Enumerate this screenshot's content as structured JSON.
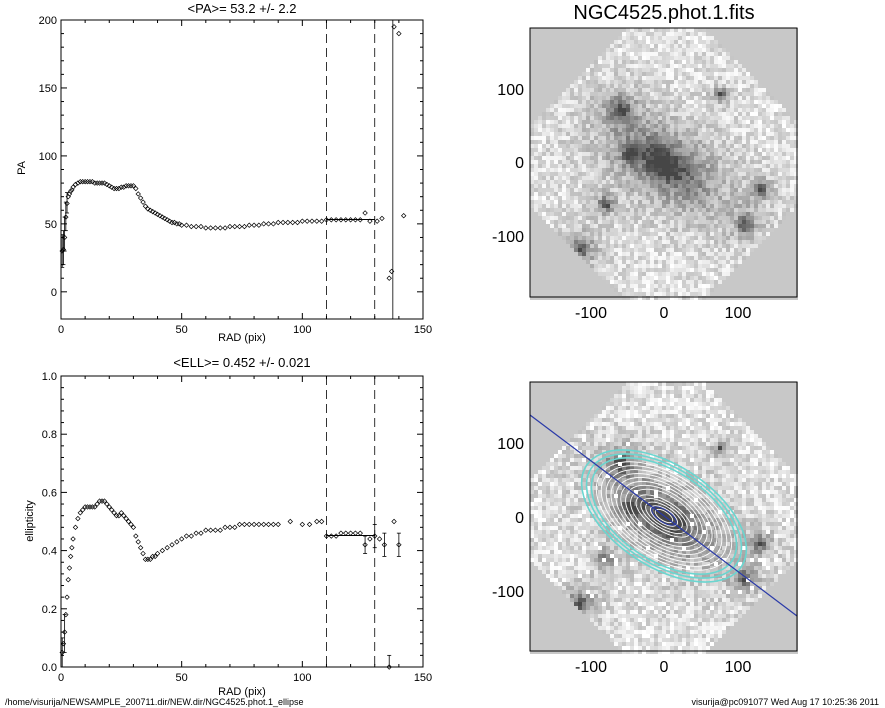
{
  "footer": {
    "path": "/home/visurija/NEWSAMPLE_200711.dir/NEW.dir/NGC4525.phot.1_ellipse",
    "user_date": "visurija@pc091077  Wed Aug 17 10:25:36 2011"
  },
  "colors": {
    "ink": "#000000",
    "contour_outer": "#6ad6d0",
    "contour_inner": "#ffffff",
    "major_axis": "#2a3aa8"
  },
  "images": {
    "top": {
      "title": "NGC4525.phot.1.fits",
      "xticks": [
        "-100",
        "0",
        "100"
      ],
      "yticks": [
        "100",
        "0",
        "-100"
      ]
    },
    "bottom": {
      "title": "",
      "xticks": [
        "-100",
        "0",
        "100"
      ],
      "yticks": [
        "100",
        "0",
        "-100"
      ]
    }
  },
  "chart_data": [
    {
      "type": "scatter",
      "title": "<PA>=  53.2 +/-   2.2",
      "xlabel": "RAD (pix)",
      "ylabel": "PA",
      "xlim": [
        0,
        150
      ],
      "ylim": [
        -20,
        200
      ],
      "xticks": [
        0,
        50,
        100,
        150
      ],
      "yticks": [
        0,
        50,
        100,
        150,
        200
      ],
      "dashed_vlines": [
        110,
        130
      ],
      "mean_segment": {
        "x": [
          110,
          130
        ],
        "y": 53.2
      },
      "points": [
        [
          0.5,
          30
        ],
        [
          1,
          31
        ],
        [
          1.5,
          40
        ],
        [
          2,
          55
        ],
        [
          2.5,
          65
        ],
        [
          3,
          70
        ],
        [
          3.5,
          72
        ],
        [
          4,
          74
        ],
        [
          4.5,
          75
        ],
        [
          5,
          77
        ],
        [
          6,
          79
        ],
        [
          7,
          80
        ],
        [
          8,
          81
        ],
        [
          9,
          81
        ],
        [
          10,
          81
        ],
        [
          11,
          81
        ],
        [
          12,
          81
        ],
        [
          13,
          81
        ],
        [
          14,
          80
        ],
        [
          15,
          80
        ],
        [
          16,
          80
        ],
        [
          17,
          80
        ],
        [
          18,
          80
        ],
        [
          19,
          79
        ],
        [
          20,
          78
        ],
        [
          21,
          77
        ],
        [
          22,
          76
        ],
        [
          23,
          76
        ],
        [
          24,
          76
        ],
        [
          25,
          77
        ],
        [
          26,
          77
        ],
        [
          27,
          78
        ],
        [
          28,
          78
        ],
        [
          29,
          78
        ],
        [
          30,
          78
        ],
        [
          31,
          76
        ],
        [
          32,
          72
        ],
        [
          33,
          69
        ],
        [
          34,
          66
        ],
        [
          35,
          63
        ],
        [
          36,
          61
        ],
        [
          37,
          60
        ],
        [
          38,
          59
        ],
        [
          39,
          58
        ],
        [
          40,
          57
        ],
        [
          41,
          56
        ],
        [
          42,
          55
        ],
        [
          43,
          54
        ],
        [
          44,
          53
        ],
        [
          45,
          52
        ],
        [
          46,
          51
        ],
        [
          47,
          51
        ],
        [
          48,
          50
        ],
        [
          49,
          50
        ],
        [
          50,
          49
        ],
        [
          52,
          49
        ],
        [
          54,
          48
        ],
        [
          56,
          48
        ],
        [
          58,
          48
        ],
        [
          60,
          47
        ],
        [
          62,
          47
        ],
        [
          64,
          47
        ],
        [
          66,
          47
        ],
        [
          68,
          47
        ],
        [
          70,
          48
        ],
        [
          72,
          48
        ],
        [
          74,
          48
        ],
        [
          76,
          48
        ],
        [
          78,
          49
        ],
        [
          80,
          49
        ],
        [
          82,
          49
        ],
        [
          84,
          50
        ],
        [
          86,
          50
        ],
        [
          88,
          50
        ],
        [
          90,
          51
        ],
        [
          92,
          51
        ],
        [
          94,
          51
        ],
        [
          96,
          51
        ],
        [
          98,
          51
        ],
        [
          100,
          52
        ],
        [
          102,
          52
        ],
        [
          104,
          52
        ],
        [
          106,
          52
        ],
        [
          108,
          52
        ],
        [
          110,
          53
        ],
        [
          112,
          53
        ],
        [
          114,
          53
        ],
        [
          116,
          53
        ],
        [
          118,
          53
        ],
        [
          120,
          53
        ],
        [
          122,
          53
        ],
        [
          124,
          53
        ],
        [
          126,
          58
        ],
        [
          128,
          52
        ],
        [
          131,
          52
        ],
        [
          133,
          54
        ],
        [
          136,
          10
        ],
        [
          137,
          15
        ],
        [
          138,
          195
        ],
        [
          140,
          190
        ],
        [
          142,
          56
        ]
      ],
      "errorbars": [
        {
          "x": 0.5,
          "y": 30,
          "lo": 18,
          "hi": 42
        },
        {
          "x": 1,
          "y": 31,
          "lo": 20,
          "hi": 45
        },
        {
          "x": 1.5,
          "y": 40,
          "lo": 30,
          "hi": 55
        },
        {
          "x": 2,
          "y": 55,
          "lo": 45,
          "hi": 66
        },
        {
          "x": 2.5,
          "y": 65,
          "lo": 58,
          "hi": 73
        },
        {
          "x": 137.5,
          "y": 15,
          "lo": -20,
          "hi": 200
        }
      ]
    },
    {
      "type": "scatter",
      "title": "<ELL>= 0.452 +/-  0.021",
      "xlabel": "RAD (pix)",
      "ylabel": "ellipticity",
      "xlim": [
        0,
        150
      ],
      "ylim": [
        0,
        1.0
      ],
      "xticks": [
        0,
        50,
        100,
        150
      ],
      "yticks": [
        "0.0",
        "0.2",
        "0.4",
        "0.6",
        "0.8",
        "1.0"
      ],
      "dashed_vlines": [
        110,
        130
      ],
      "mean_segment": {
        "x": [
          110,
          130
        ],
        "y": 0.452
      },
      "points": [
        [
          0.5,
          0.05
        ],
        [
          1,
          0.08
        ],
        [
          1.5,
          0.12
        ],
        [
          2,
          0.18
        ],
        [
          2.5,
          0.24
        ],
        [
          3,
          0.3
        ],
        [
          3.5,
          0.34
        ],
        [
          4,
          0.38
        ],
        [
          4.5,
          0.41
        ],
        [
          5,
          0.44
        ],
        [
          6,
          0.48
        ],
        [
          7,
          0.51
        ],
        [
          8,
          0.53
        ],
        [
          9,
          0.54
        ],
        [
          10,
          0.55
        ],
        [
          11,
          0.55
        ],
        [
          12,
          0.55
        ],
        [
          13,
          0.55
        ],
        [
          14,
          0.55
        ],
        [
          15,
          0.56
        ],
        [
          16,
          0.57
        ],
        [
          17,
          0.57
        ],
        [
          18,
          0.57
        ],
        [
          19,
          0.56
        ],
        [
          20,
          0.55
        ],
        [
          21,
          0.54
        ],
        [
          22,
          0.53
        ],
        [
          23,
          0.52
        ],
        [
          24,
          0.52
        ],
        [
          25,
          0.53
        ],
        [
          26,
          0.52
        ],
        [
          27,
          0.51
        ],
        [
          28,
          0.5
        ],
        [
          29,
          0.49
        ],
        [
          30,
          0.48
        ],
        [
          31,
          0.45
        ],
        [
          32,
          0.43
        ],
        [
          33,
          0.41
        ],
        [
          34,
          0.39
        ],
        [
          35,
          0.37
        ],
        [
          36,
          0.37
        ],
        [
          37,
          0.37
        ],
        [
          38,
          0.38
        ],
        [
          39,
          0.38
        ],
        [
          40,
          0.39
        ],
        [
          42,
          0.4
        ],
        [
          44,
          0.41
        ],
        [
          46,
          0.42
        ],
        [
          48,
          0.43
        ],
        [
          50,
          0.44
        ],
        [
          52,
          0.45
        ],
        [
          54,
          0.45
        ],
        [
          56,
          0.46
        ],
        [
          58,
          0.46
        ],
        [
          60,
          0.47
        ],
        [
          62,
          0.47
        ],
        [
          64,
          0.47
        ],
        [
          66,
          0.47
        ],
        [
          68,
          0.48
        ],
        [
          70,
          0.48
        ],
        [
          72,
          0.48
        ],
        [
          74,
          0.49
        ],
        [
          76,
          0.49
        ],
        [
          78,
          0.49
        ],
        [
          80,
          0.49
        ],
        [
          82,
          0.49
        ],
        [
          84,
          0.49
        ],
        [
          86,
          0.49
        ],
        [
          88,
          0.49
        ],
        [
          90,
          0.49
        ],
        [
          95,
          0.5
        ],
        [
          100,
          0.49
        ],
        [
          103,
          0.49
        ],
        [
          106,
          0.5
        ],
        [
          108,
          0.5
        ],
        [
          110,
          0.45
        ],
        [
          112,
          0.45
        ],
        [
          114,
          0.45
        ],
        [
          116,
          0.46
        ],
        [
          118,
          0.46
        ],
        [
          120,
          0.46
        ],
        [
          122,
          0.46
        ],
        [
          124,
          0.46
        ],
        [
          126,
          0.42
        ],
        [
          128,
          0.44
        ],
        [
          130,
          0.45
        ],
        [
          132,
          0.44
        ],
        [
          134,
          0.42
        ],
        [
          136,
          0.0
        ],
        [
          138,
          0.5
        ],
        [
          140,
          0.42
        ]
      ],
      "errorbars": [
        {
          "x": 0.5,
          "y": 0.05,
          "lo": 0.0,
          "hi": 0.1
        },
        {
          "x": 1.5,
          "y": 0.12,
          "lo": 0.05,
          "hi": 0.18
        },
        {
          "x": 126,
          "y": 0.42,
          "lo": 0.39,
          "hi": 0.45
        },
        {
          "x": 130,
          "y": 0.45,
          "lo": 0.41,
          "hi": 0.49
        },
        {
          "x": 134,
          "y": 0.42,
          "lo": 0.38,
          "hi": 0.46
        },
        {
          "x": 136,
          "y": 0.0,
          "lo": -0.01,
          "hi": 0.04
        },
        {
          "x": 140,
          "y": 0.42,
          "lo": 0.38,
          "hi": 0.46
        }
      ]
    }
  ]
}
